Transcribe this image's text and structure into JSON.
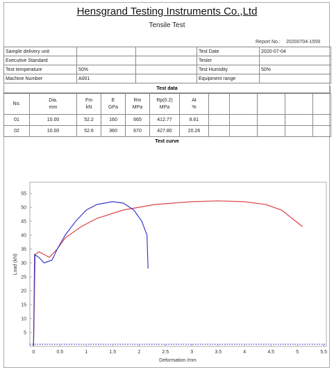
{
  "header": {
    "company": "Hensgrand Testing Instruments Co.,Ltd",
    "title": "Tensile Test",
    "report_no_label": "Report No.:",
    "report_no": "20200704-1559"
  },
  "info_table": {
    "rows": [
      {
        "label": "Sample delivery unit",
        "right_label": "Test Date",
        "right_value": "2020-07-04"
      },
      {
        "label": "Executive Standard",
        "right_label": "Tester"
      },
      {
        "label": "Test temperature",
        "value": "50%",
        "right_label": "Test Humidity",
        "right_value": "50%"
      },
      {
        "label": "Machine Number",
        "value": "A001",
        "right_label": "Equipment range"
      }
    ]
  },
  "test_data": {
    "heading": "Test data",
    "columns": [
      {
        "name": "No."
      },
      {
        "name": "Dia.",
        "unit": "mm"
      },
      {
        "name": "Fm",
        "unit": "kN"
      },
      {
        "name": "E",
        "unit": "GPa"
      },
      {
        "name": "Rm",
        "unit": "MPa"
      },
      {
        "name": "Rp(0.2)",
        "unit": "MPa"
      },
      {
        "name": "At",
        "unit": "%"
      }
    ],
    "rows": [
      [
        "01",
        "10.00",
        "52.2",
        "160",
        "665",
        "412.77",
        "8.61"
      ],
      [
        "02",
        "10.00",
        "52.6",
        "360",
        "670",
        "427.80",
        "20.26"
      ]
    ]
  },
  "test_curve": {
    "heading": "Test curve"
  },
  "chart_data": {
    "type": "line",
    "xlabel": "Deformation /mm",
    "ylabel": "Load (kN)",
    "xlim": [
      -0.07,
      5.55
    ],
    "ylim": [
      0,
      59
    ],
    "xticks": [
      0,
      0.5,
      1,
      1.5,
      2,
      2.5,
      3,
      3.5,
      4,
      4.5,
      5,
      5.5
    ],
    "yticks": [
      5,
      10,
      15,
      20,
      25,
      30,
      35,
      40,
      45,
      50,
      55
    ],
    "series": [
      {
        "color": "#d9434a",
        "x": [
          0,
          0.03,
          0.1,
          0.2,
          0.3,
          0.45,
          0.6,
          0.9,
          1.2,
          1.7,
          2.3,
          3.0,
          3.5,
          4.0,
          4.4,
          4.7,
          4.9,
          5.1
        ],
        "values": [
          0,
          33,
          34,
          33,
          32,
          35,
          39,
          43,
          46,
          49,
          51,
          52,
          52.3,
          52,
          51,
          49,
          46,
          43
        ]
      },
      {
        "color": "#3a3ac8",
        "x": [
          0,
          0.02,
          0.1,
          0.2,
          0.35,
          0.45,
          0.6,
          0.8,
          1.0,
          1.2,
          1.5,
          1.7,
          1.9,
          2.05,
          2.15,
          2.17
        ],
        "values": [
          0,
          33,
          32,
          30,
          31,
          35,
          40,
          45,
          49,
          51,
          52,
          51.5,
          49,
          45,
          40,
          28
        ]
      }
    ]
  }
}
